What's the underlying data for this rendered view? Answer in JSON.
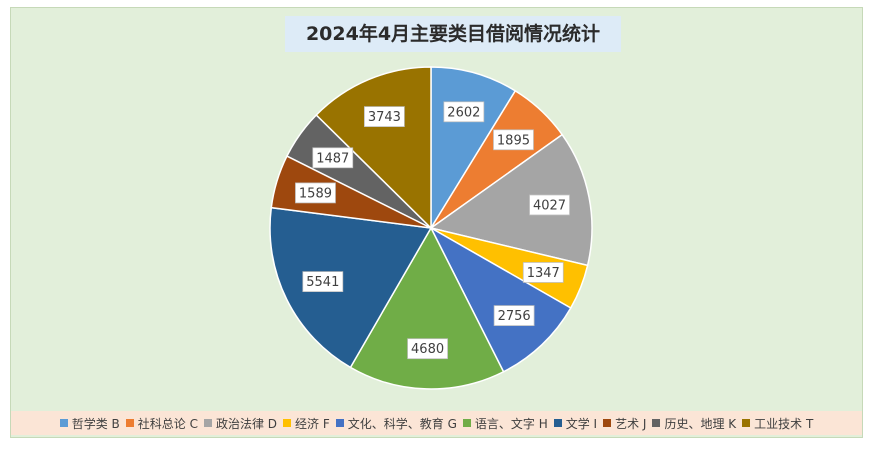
{
  "chart_data": {
    "type": "pie",
    "title": "2024年4月主要类目借阅情况统计",
    "categories": [
      "哲学类 B",
      "社科总论 C",
      "政治法律 D",
      "经济 F",
      "文化、科学、教育 G",
      "语言、文字 H",
      "文学 I",
      "艺术 J",
      "历史、地理 K",
      "工业技术 T"
    ],
    "values": [
      2602,
      1895,
      4027,
      1347,
      2756,
      4680,
      5541,
      1589,
      1487,
      3743
    ],
    "colors": [
      "#5b9bd5",
      "#ed7d31",
      "#a5a5a5",
      "#ffc000",
      "#4472c4",
      "#70ad47",
      "#255e91",
      "#9e480e",
      "#636363",
      "#997300"
    ],
    "legend_position": "bottom",
    "start_angle_deg": 0,
    "direction": "clockwise"
  }
}
